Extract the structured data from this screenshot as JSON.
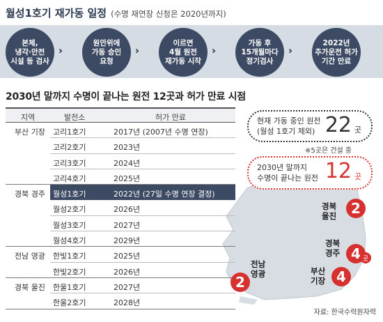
{
  "timeline": {
    "title": "월성1호기 재가동 일정",
    "subtitle": "(수명 재연장 신청은 2020년까지)",
    "steps": [
      "본체,\n냉각·안전\n시설 등 검사",
      "원안위에\n가동 승인\n요청",
      "이르면\n4월 원전\n재가동 시작",
      "가동 후\n15개월마다\n정기검사",
      "2022년\n추가운전 허가\n기간 만료"
    ],
    "arrow": "›››"
  },
  "section_title": "2030년 말까지 수명이 끝나는 원전 12곳과 허가 만료 시점",
  "table": {
    "headers": {
      "region": "지역",
      "plant": "발전소",
      "expiry": "허가 만료"
    },
    "rows": [
      {
        "region": "부산 기장",
        "plant": "고리1호기",
        "expiry": "2017년 (2007년 수명 연장)"
      },
      {
        "region": "",
        "plant": "고리2호기",
        "expiry": "2023년"
      },
      {
        "region": "",
        "plant": "고리3호기",
        "expiry": "2024년"
      },
      {
        "region": "",
        "plant": "고리4호기",
        "expiry": "2025년"
      },
      {
        "region": "경북 경주",
        "plant": "월성1호기",
        "expiry": "2022년 (27일 수명 연장 결정)"
      },
      {
        "region": "",
        "plant": "월성2호기",
        "expiry": "2026년"
      },
      {
        "region": "",
        "plant": "월성3호기",
        "expiry": "2027년"
      },
      {
        "region": "",
        "plant": "월성4호기",
        "expiry": "2029년"
      },
      {
        "region": "전남 영광",
        "plant": "한빛1호기",
        "expiry": "2025년"
      },
      {
        "region": "",
        "plant": "한빛2호기",
        "expiry": "2026년"
      },
      {
        "region": "경북 울진",
        "plant": "한울1호기",
        "expiry": "2027년"
      },
      {
        "region": "",
        "plant": "한울2호기",
        "expiry": "2028년"
      }
    ]
  },
  "box_operating": {
    "text": "현재 가동 중인 원전\n(월성 1호기 제외)",
    "number": "22",
    "unit": "곳"
  },
  "note": "※5곳은 건설 중",
  "box_expiring": {
    "text": "2030년 말까지\n수명이 끝나는 원전",
    "number": "12",
    "unit": "곳"
  },
  "map": {
    "uljin": {
      "label": "경북\n울진",
      "count": "2"
    },
    "gyeongju": {
      "label": "경북\n경주",
      "count": "4",
      "unit": "곳"
    },
    "busan": {
      "label": "부산\n기장",
      "count": "4"
    },
    "yeonggwang": {
      "label": "전남\n영광",
      "count": "2"
    }
  },
  "source": "자료: 한국수력원자력",
  "colors": {
    "navy": "#3d4a63",
    "accent_red": "#d7312f",
    "band": "#d6dce4"
  }
}
